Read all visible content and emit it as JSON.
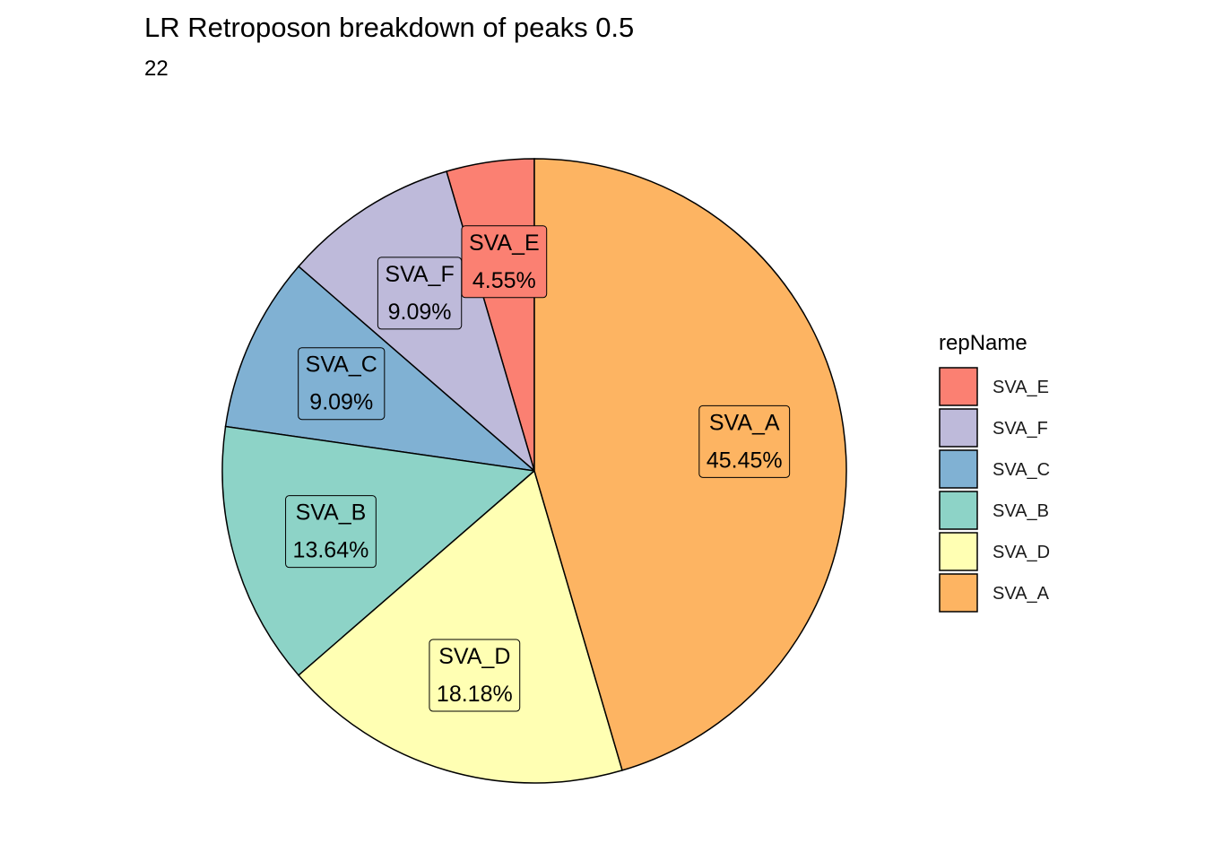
{
  "chart_data": {
    "type": "pie",
    "title": "LR Retroposon breakdown of peaks 0.5",
    "subtitle": "22",
    "legend": {
      "title": "repName",
      "placement": "right"
    },
    "slices": [
      {
        "name": "SVA_E",
        "value": 1,
        "percent_label": "4.55%",
        "color": "#FB8072"
      },
      {
        "name": "SVA_F",
        "value": 2,
        "percent_label": "9.09%",
        "color": "#BEBADA"
      },
      {
        "name": "SVA_C",
        "value": 2,
        "percent_label": "9.09%",
        "color": "#80B1D3"
      },
      {
        "name": "SVA_B",
        "value": 3,
        "percent_label": "13.64%",
        "color": "#8DD3C7"
      },
      {
        "name": "SVA_D",
        "value": 4,
        "percent_label": "18.18%",
        "color": "#FFFFB3"
      },
      {
        "name": "SVA_A",
        "value": 10,
        "percent_label": "45.45%",
        "color": "#FDB462"
      }
    ]
  }
}
